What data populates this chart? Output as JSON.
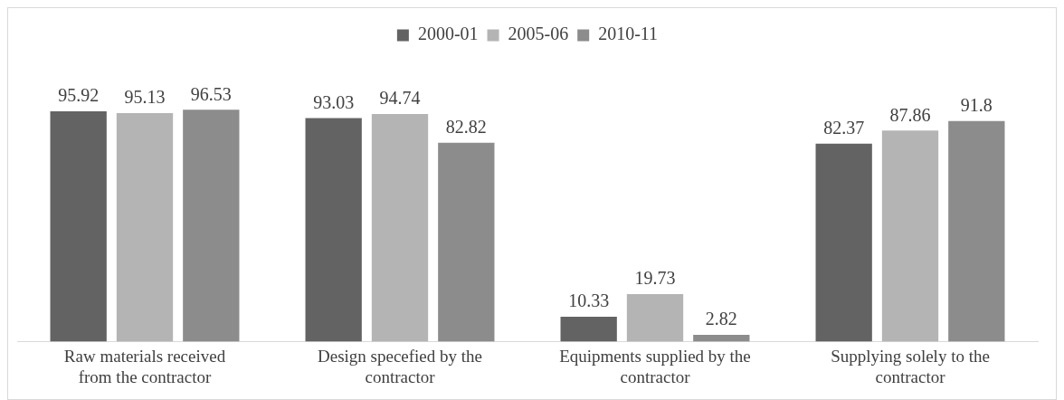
{
  "chart_data": {
    "type": "bar",
    "categories": [
      "Raw materials received from the contractor",
      "Design specefied by the contractor",
      "Equipments supplied by the contractor",
      "Supplying solely to the contractor"
    ],
    "series": [
      {
        "name": "2000-01",
        "color": "#636363",
        "values": [
          95.92,
          93.03,
          10.33,
          82.37
        ]
      },
      {
        "name": "2005-06",
        "color": "#b4b4b4",
        "values": [
          95.13,
          94.74,
          19.73,
          87.86
        ]
      },
      {
        "name": "2010-11",
        "color": "#8c8c8c",
        "values": [
          96.53,
          82.82,
          2.82,
          91.8
        ]
      }
    ],
    "data_labels": true,
    "legend": "top",
    "grid": false,
    "tick_labels": "x"
  }
}
